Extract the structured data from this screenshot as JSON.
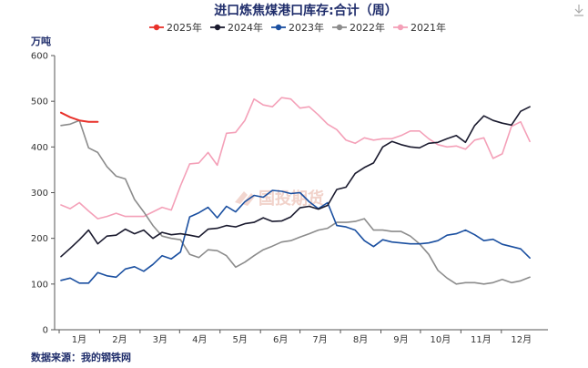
{
  "chart_data": {
    "type": "line",
    "title": "进口炼焦煤港口库存:合计（周）",
    "ylabel": "万吨",
    "ylim": [
      0,
      600
    ],
    "yticks": [
      0,
      100,
      200,
      300,
      400,
      500,
      600
    ],
    "xticks": [
      "1月",
      "2月",
      "3月",
      "4月",
      "5月",
      "6月",
      "7月",
      "8月",
      "9月",
      "10月",
      "11月",
      "12月"
    ],
    "xlim": [
      1,
      53
    ],
    "grid": false,
    "legend_position": "top",
    "source": "数据来源：我的钢铁网",
    "watermark": "国投期货",
    "series": [
      {
        "name": "2025年",
        "color": "#e8312a",
        "x": [
          1,
          2,
          3,
          4,
          5
        ],
        "values": [
          475,
          465,
          458,
          455,
          455
        ]
      },
      {
        "name": "2024年",
        "color": "#1a1a2e",
        "x": [
          1,
          2,
          3,
          4,
          5,
          6,
          7,
          8,
          9,
          10,
          11,
          12,
          13,
          14,
          15,
          16,
          17,
          18,
          19,
          20,
          21,
          22,
          23,
          24,
          25,
          26,
          27,
          28,
          29,
          30,
          31,
          32,
          33,
          34,
          35,
          36,
          37,
          38,
          39,
          40,
          41,
          42,
          43,
          44,
          45,
          46,
          47,
          48,
          49,
          50,
          51,
          52
        ],
        "values": [
          160,
          178,
          197,
          218,
          188,
          205,
          207,
          220,
          210,
          218,
          200,
          213,
          208,
          210,
          207,
          203,
          220,
          222,
          228,
          225,
          232,
          235,
          245,
          237,
          238,
          247,
          267,
          270,
          264,
          272,
          307,
          312,
          342,
          355,
          365,
          400,
          412,
          405,
          400,
          398,
          408,
          410,
          418,
          425,
          410,
          447,
          468,
          458,
          452,
          448,
          478,
          488
        ]
      },
      {
        "name": "2023年",
        "color": "#1a4fa0",
        "x": [
          1,
          2,
          3,
          4,
          5,
          6,
          7,
          8,
          9,
          10,
          11,
          12,
          13,
          14,
          15,
          16,
          17,
          18,
          19,
          20,
          21,
          22,
          23,
          24,
          25,
          26,
          27,
          28,
          29,
          30,
          31,
          32,
          33,
          34,
          35,
          36,
          37,
          38,
          39,
          40,
          41,
          42,
          43,
          44,
          45,
          46,
          47,
          48,
          49,
          50,
          51,
          52
        ],
        "values": [
          108,
          113,
          102,
          102,
          125,
          118,
          115,
          133,
          138,
          128,
          143,
          162,
          155,
          170,
          247,
          256,
          268,
          245,
          270,
          258,
          280,
          294,
          290,
          305,
          303,
          298,
          300,
          280,
          265,
          278,
          228,
          225,
          218,
          195,
          182,
          197,
          192,
          190,
          188,
          188,
          190,
          195,
          207,
          210,
          218,
          208,
          195,
          198,
          187,
          182,
          177,
          157
        ]
      },
      {
        "name": "2022年",
        "color": "#8c8c8c",
        "x": [
          1,
          2,
          3,
          4,
          5,
          6,
          7,
          8,
          9,
          10,
          11,
          12,
          13,
          14,
          15,
          16,
          17,
          18,
          19,
          20,
          21,
          22,
          23,
          24,
          25,
          26,
          27,
          28,
          29,
          30,
          31,
          32,
          33,
          34,
          35,
          36,
          37,
          38,
          39,
          40,
          41,
          42,
          43,
          44,
          45,
          46,
          47,
          48,
          49,
          50,
          51,
          52
        ],
        "values": [
          447,
          450,
          458,
          398,
          388,
          357,
          336,
          330,
          285,
          258,
          228,
          205,
          200,
          197,
          165,
          158,
          175,
          173,
          162,
          137,
          148,
          162,
          175,
          183,
          192,
          195,
          203,
          210,
          218,
          222,
          235,
          235,
          237,
          243,
          218,
          218,
          215,
          215,
          205,
          188,
          165,
          130,
          113,
          100,
          103,
          103,
          100,
          103,
          110,
          103,
          107,
          115
        ]
      },
      {
        "name": "2021年",
        "color": "#f4a0b8",
        "x": [
          1,
          2,
          3,
          4,
          5,
          6,
          7,
          8,
          9,
          10,
          11,
          12,
          13,
          14,
          15,
          16,
          17,
          18,
          19,
          20,
          21,
          22,
          23,
          24,
          25,
          26,
          27,
          28,
          29,
          30,
          31,
          32,
          33,
          34,
          35,
          36,
          37,
          38,
          39,
          40,
          41,
          42,
          43,
          44,
          45,
          46,
          47,
          48,
          49,
          50,
          51,
          52
        ],
        "values": [
          273,
          265,
          278,
          260,
          243,
          248,
          255,
          248,
          248,
          248,
          258,
          268,
          262,
          315,
          363,
          365,
          388,
          360,
          430,
          432,
          458,
          505,
          492,
          488,
          508,
          505,
          485,
          488,
          470,
          450,
          438,
          415,
          408,
          420,
          415,
          418,
          418,
          425,
          435,
          435,
          418,
          405,
          400,
          402,
          395,
          415,
          420,
          375,
          385,
          445,
          455,
          412
        ]
      }
    ]
  }
}
